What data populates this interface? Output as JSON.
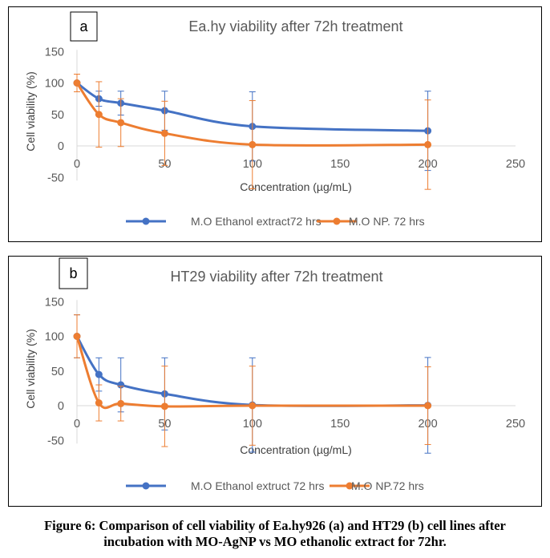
{
  "chart_data": [
    {
      "panel_letter": "a",
      "type": "line",
      "title": "Ea.hy viability after 72h treatment",
      "xlabel": "Concentration (µg/mL)",
      "ylabel": "Cell viability (%)",
      "xlim": [
        0,
        250
      ],
      "ylim": [
        -50,
        150
      ],
      "x_ticks": [
        0,
        50,
        100,
        150,
        200,
        250
      ],
      "y_ticks": [
        -50,
        0,
        50,
        100,
        150
      ],
      "x": [
        0,
        12.5,
        25,
        50,
        100,
        200
      ],
      "series": [
        {
          "name": "M.O Ethanol extract72 hrs",
          "color": "#4472c4",
          "values": [
            100,
            75,
            68,
            56,
            31,
            24
          ],
          "error": [
            14,
            12,
            19,
            31,
            55,
            63
          ]
        },
        {
          "name": "M.O NP. 72 hrs",
          "color": "#ed7d31",
          "values": [
            100,
            50,
            37,
            20,
            2,
            2
          ],
          "error": [
            14,
            52,
            38,
            51,
            70,
            71
          ]
        }
      ],
      "grid": false,
      "legend_position": "bottom"
    },
    {
      "panel_letter": "b",
      "type": "line",
      "title": "HT29 viability after 72h treatment",
      "xlabel": "Concentration (µg/mL)",
      "ylabel": "Cell viability (%)",
      "xlim": [
        0,
        250
      ],
      "ylim": [
        -50,
        150
      ],
      "x_ticks": [
        0,
        50,
        100,
        150,
        200,
        250
      ],
      "y_ticks": [
        -50,
        0,
        50,
        100,
        150
      ],
      "x": [
        0,
        12.5,
        25,
        50,
        100,
        200
      ],
      "series": [
        {
          "name": "M.O Ethanol extruct 72 hrs",
          "color": "#4472c4",
          "values": [
            100,
            45,
            30,
            17,
            1,
            0.5
          ],
          "error": [
            31,
            24,
            39,
            52,
            68,
            69
          ]
        },
        {
          "name": "M.O NP.72 hrs",
          "color": "#ed7d31",
          "values": [
            100,
            4,
            3,
            -1,
            0,
            0
          ],
          "error": [
            31,
            26,
            25,
            58,
            57,
            56
          ]
        }
      ],
      "grid": false,
      "legend_position": "bottom"
    }
  ],
  "caption": {
    "line1": "Figure 6: Comparison of cell viability of Ea.hy926 (a) and HT29 (b) cell lines after",
    "line2": "incubation with MO-AgNP vs MO ethanolic extract for 72hr."
  }
}
